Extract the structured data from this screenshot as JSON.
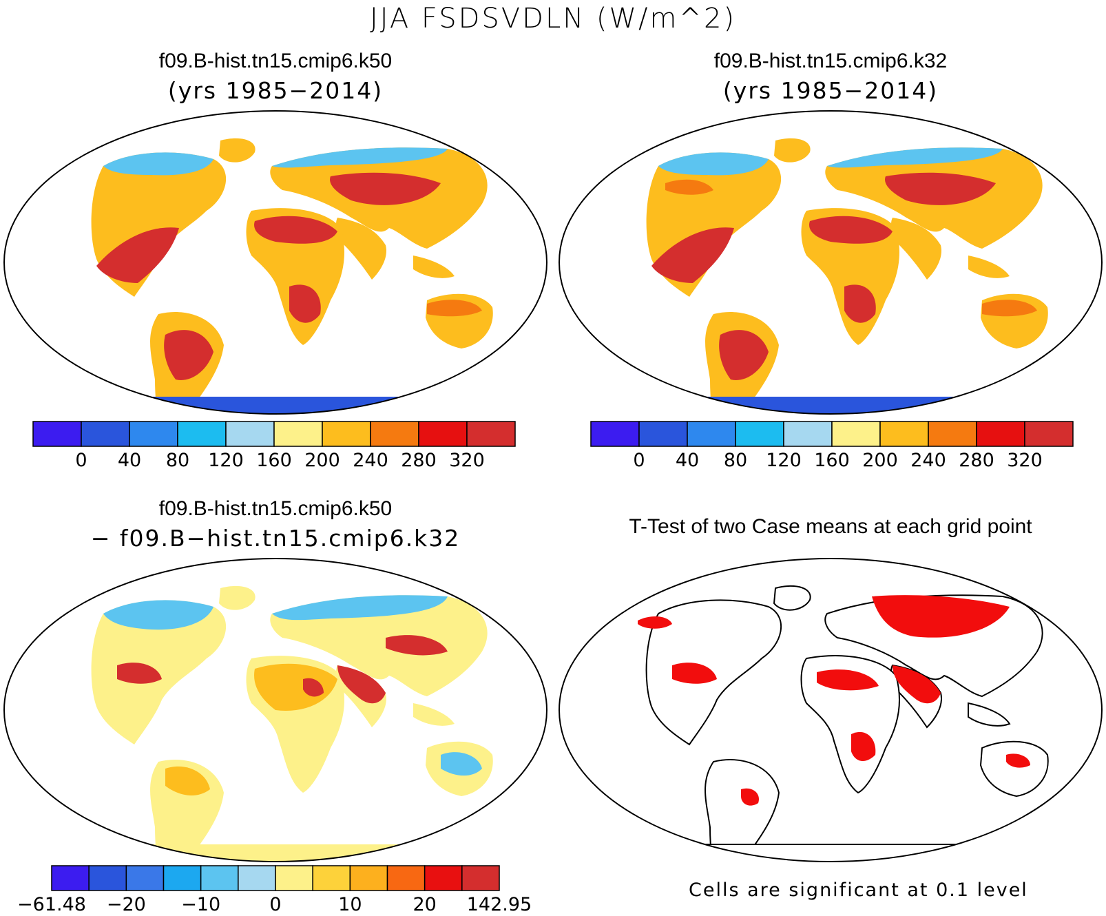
{
  "figure": {
    "title": "JJA FSDSVDLN (W/m^2)"
  },
  "panels": [
    {
      "id": "case1",
      "title": "f09.B-hist.tn15.cmip6.k50",
      "subtitle": "(yrs 1985−2014)",
      "colorbar": {
        "colors": [
          "#3c1cf0",
          "#2a55dc",
          "#2e88ee",
          "#1cbcf0",
          "#a6d8f0",
          "#fdf18a",
          "#fdbd1e",
          "#f57a10",
          "#e61010",
          "#d42e2e"
        ],
        "labels": [
          "0",
          "40",
          "80",
          "120",
          "160",
          "200",
          "240",
          "280",
          "320"
        ]
      }
    },
    {
      "id": "case2",
      "title": "f09.B-hist.tn15.cmip6.k32",
      "subtitle": "(yrs 1985−2014)",
      "colorbar": {
        "colors": [
          "#3c1cf0",
          "#2a55dc",
          "#2e88ee",
          "#1cbcf0",
          "#a6d8f0",
          "#fdf18a",
          "#fdbd1e",
          "#f57a10",
          "#e61010",
          "#d42e2e"
        ],
        "labels": [
          "0",
          "40",
          "80",
          "120",
          "160",
          "200",
          "240",
          "280",
          "320"
        ]
      }
    },
    {
      "id": "difference",
      "title": "f09.B-hist.tn15.cmip6.k50",
      "subtitle": "− f09.B−hist.tn15.cmip6.k32",
      "colorbar": {
        "colors": [
          "#3c1cf0",
          "#2a55dc",
          "#3a78e8",
          "#1ca8f0",
          "#5cc4f0",
          "#a6d8f0",
          "#fdf18a",
          "#fdd23a",
          "#fdb01e",
          "#f86812",
          "#e81010",
          "#d42e2e"
        ],
        "labels": [
          "−61.48",
          "−20",
          "−10",
          "0",
          "10",
          "20",
          "142.95"
        ]
      }
    },
    {
      "id": "ttest",
      "title": "T-Test of two Case means at each grid point",
      "note": "Cells are significant at 0.1 level"
    }
  ]
}
